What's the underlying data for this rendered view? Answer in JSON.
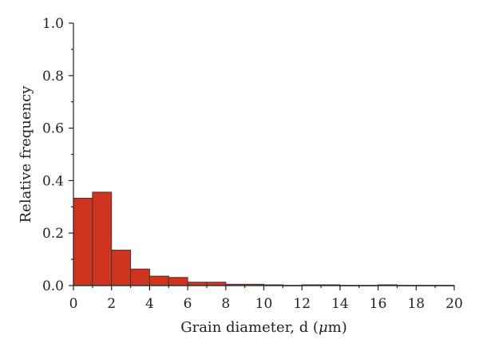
{
  "chart_data": {
    "type": "bar",
    "xlabel_prefix": "Grain diameter, d (",
    "xlabel_mu": "μ",
    "xlabel_suffix": "m)",
    "ylabel": "Relative frequency",
    "xlim": [
      0,
      20
    ],
    "ylim": [
      0,
      1.0
    ],
    "xticks": [
      "0",
      "2",
      "4",
      "6",
      "8",
      "10",
      "12",
      "14",
      "16",
      "18",
      "20"
    ],
    "yticks": [
      "0.0",
      "0.2",
      "0.4",
      "0.6",
      "0.8",
      "1.0"
    ],
    "bin_width": 1,
    "bins": [
      {
        "x0": 0,
        "value": 0.333
      },
      {
        "x0": 1,
        "value": 0.356
      },
      {
        "x0": 2,
        "value": 0.135
      },
      {
        "x0": 3,
        "value": 0.063
      },
      {
        "x0": 4,
        "value": 0.036
      },
      {
        "x0": 5,
        "value": 0.031
      },
      {
        "x0": 6,
        "value": 0.013
      },
      {
        "x0": 7,
        "value": 0.013
      },
      {
        "x0": 8,
        "value": 0.005
      },
      {
        "x0": 9,
        "value": 0.005
      },
      {
        "x0": 10,
        "value": 0.003
      },
      {
        "x0": 11,
        "value": 0.001
      },
      {
        "x0": 12,
        "value": 0.003
      },
      {
        "x0": 13,
        "value": 0.003
      },
      {
        "x0": 14,
        "value": 0.001
      },
      {
        "x0": 15,
        "value": 0.001
      },
      {
        "x0": 16,
        "value": 0.003
      },
      {
        "x0": 17,
        "value": 0.001
      },
      {
        "x0": 18,
        "value": 0.001
      },
      {
        "x0": 19,
        "value": 0.001
      }
    ],
    "bar_color": "#d0341f",
    "grid": false,
    "legend": "none"
  }
}
